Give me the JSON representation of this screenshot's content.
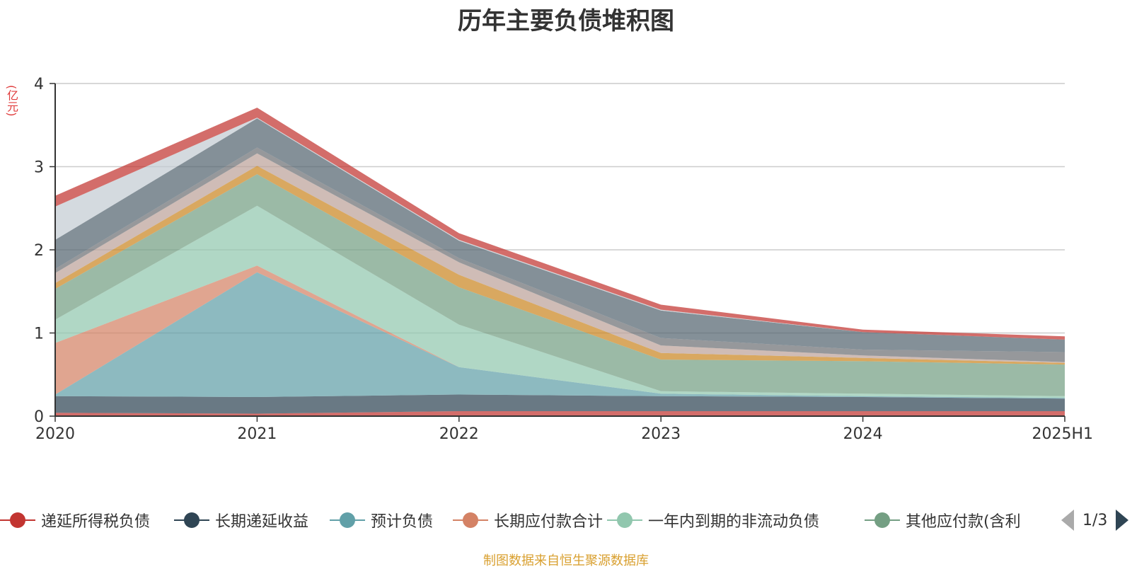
{
  "title": "历年主要负债堆积图",
  "y_unit": "(亿元)",
  "source": "制图数据来自恒生聚源数据库",
  "legend": {
    "items": [
      {
        "label": "递延所得税负债",
        "color": "#c23531"
      },
      {
        "label": "长期递延收益",
        "color": "#2f4554"
      },
      {
        "label": "预计负债",
        "color": "#61a0a8"
      },
      {
        "label": "长期应付款合计",
        "color": "#d48265"
      },
      {
        "label": "一年内到期的非流动负债",
        "color": "#91c7ae"
      },
      {
        "label": "其他应付款(含利",
        "color": "#749f83"
      }
    ],
    "page": "1/3"
  },
  "chart_data": {
    "type": "area",
    "stacked": true,
    "x": [
      "2020",
      "2021",
      "2022",
      "2023",
      "2024",
      "2025H1"
    ],
    "y_ticks": [
      "0",
      "1",
      "2",
      "3",
      "4"
    ],
    "ylim": [
      0,
      4
    ],
    "grid": true,
    "series": [
      {
        "name": "递延所得税负债",
        "color": "#c23531",
        "values": [
          0.04,
          0.03,
          0.06,
          0.06,
          0.06,
          0.06
        ]
      },
      {
        "name": "长期递延收益",
        "color": "#2f4554",
        "values": [
          0.2,
          0.2,
          0.2,
          0.18,
          0.17,
          0.15
        ]
      },
      {
        "name": "预计负债",
        "color": "#61a0a8",
        "values": [
          0.02,
          1.5,
          0.33,
          0.03,
          0.01,
          0.01
        ]
      },
      {
        "name": "长期应付款合计",
        "color": "#d48265",
        "values": [
          0.62,
          0.08,
          0.0,
          0.0,
          0.0,
          0.0
        ]
      },
      {
        "name": "一年内到期的非流动负债",
        "color": "#91c7ae",
        "values": [
          0.28,
          0.72,
          0.51,
          0.03,
          0.03,
          0.02
        ]
      },
      {
        "name": "其他应付款(含利",
        "color": "#749f83",
        "values": [
          0.37,
          0.38,
          0.45,
          0.38,
          0.39,
          0.38
        ]
      },
      {
        "color": "#ca8622",
        "values": [
          0.07,
          0.1,
          0.15,
          0.08,
          0.04,
          0.02
        ]
      },
      {
        "color": "#bda29a",
        "values": [
          0.12,
          0.15,
          0.15,
          0.09,
          0.03,
          0.01
        ]
      },
      {
        "color": "#6e7074",
        "values": [
          0.05,
          0.07,
          0.05,
          0.09,
          0.07,
          0.12
        ]
      },
      {
        "color": "#546570",
        "values": [
          0.35,
          0.35,
          0.21,
          0.33,
          0.21,
          0.15
        ]
      },
      {
        "color": "#c4ccd3",
        "values": [
          0.4,
          0.01,
          0.01,
          0.01,
          0.0,
          0.0
        ]
      },
      {
        "color": "#c23531",
        "values": [
          0.13,
          0.12,
          0.08,
          0.06,
          0.03,
          0.04
        ]
      }
    ]
  }
}
